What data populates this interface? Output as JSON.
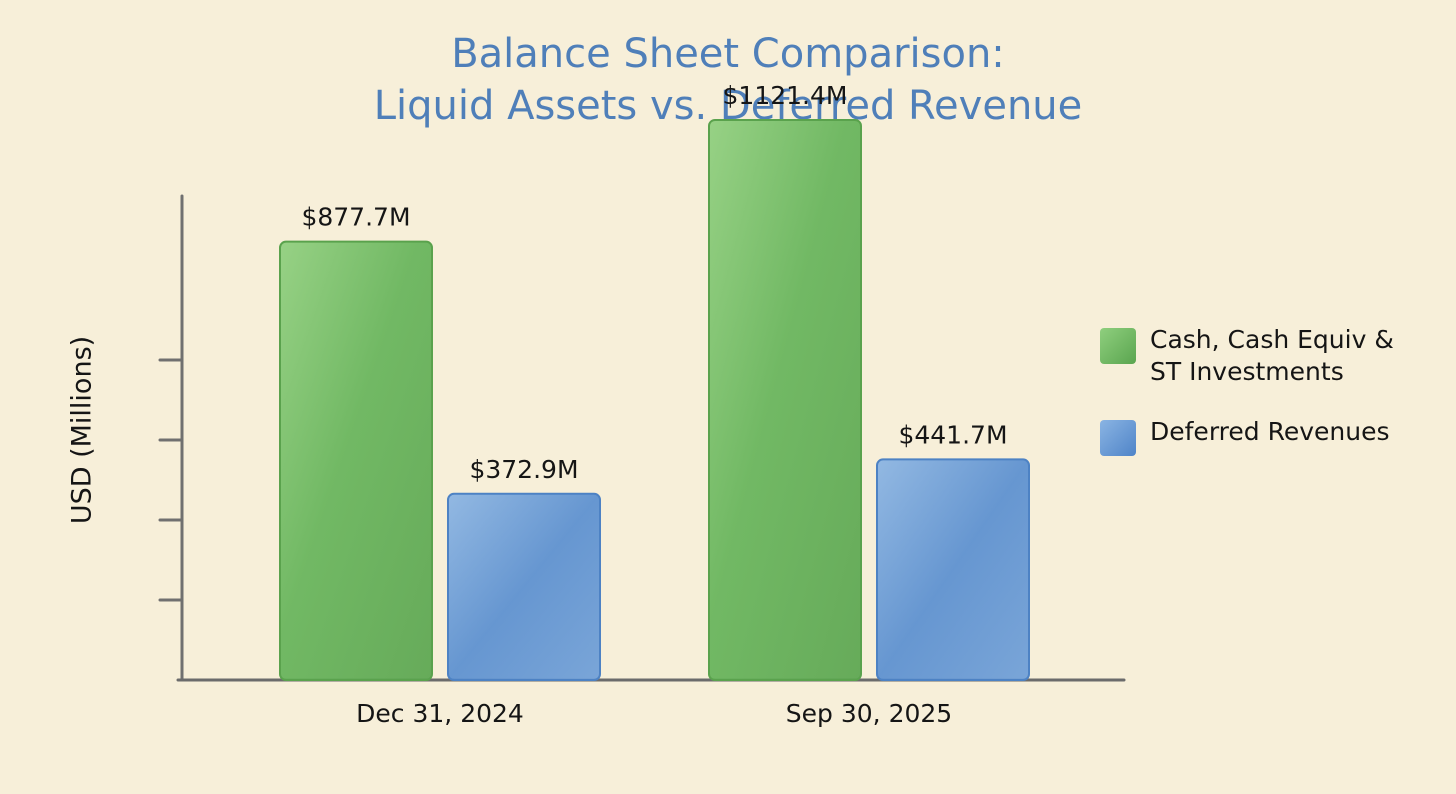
{
  "colors": {
    "background": "#f7efd9",
    "title": "#4f7fb9",
    "cash_series": "#6ab85c",
    "deferred_series": "#5b8fd0",
    "axis": "#6b6b6b",
    "text": "#151515"
  },
  "chart_data": {
    "type": "bar",
    "title": "Balance Sheet Comparison:",
    "subtitle": "Liquid Assets vs. Deferred Revenue",
    "xlabel": "",
    "ylabel": "USD (Millions)",
    "categories": [
      "Dec 31, 2024",
      "Sep 30, 2025"
    ],
    "series": [
      {
        "name": "Cash, Cash Equiv & ST Investments",
        "legend_line1": "Cash, Cash Equiv &",
        "legend_line2": "ST Investments",
        "values": [
          877.7,
          1121.4
        ],
        "labels": [
          "$877.7M",
          "$1121.4M"
        ],
        "color": "#6ab85c"
      },
      {
        "name": "Deferred Revenues",
        "legend_line1": "Deferred Revenues",
        "legend_line2": "",
        "values": [
          372.9,
          441.7
        ],
        "labels": [
          "$372.9M",
          "$441.7M"
        ],
        "color": "#5b8fd0"
      }
    ],
    "ylim": [
      0,
      1250
    ],
    "yticks": [
      250,
      500,
      750,
      1000,
      1250
    ],
    "show_tick_labels": false,
    "grid": false,
    "legend_position": "right"
  }
}
